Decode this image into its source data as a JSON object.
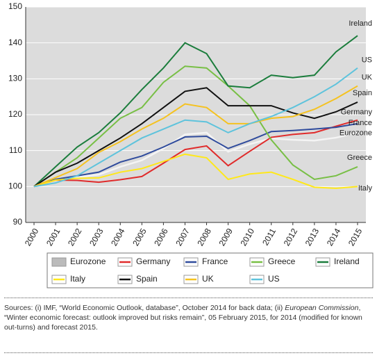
{
  "chart_data": {
    "type": "line",
    "categories": [
      "2000",
      "2001",
      "2002",
      "2003",
      "2004",
      "2005",
      "2006",
      "2007",
      "2008",
      "2009",
      "2010",
      "2011",
      "2012",
      "2013",
      "2014",
      "2015"
    ],
    "ylim": [
      90,
      150
    ],
    "yticks": [
      90,
      100,
      110,
      120,
      130,
      140,
      150
    ],
    "grid": true,
    "series": [
      {
        "name": "Eurozone",
        "color": "#f4f4f4",
        "values": [
          100,
          101.9,
          102.6,
          103.3,
          105.5,
          107.3,
          110.6,
          114.5,
          115,
          109.7,
          111.8,
          113.4,
          113,
          112.8,
          113.6,
          115
        ]
      },
      {
        "name": "Germany",
        "color": "#e02b2b",
        "values": [
          100,
          101.8,
          101.7,
          101.2,
          101.9,
          102.8,
          106.5,
          110.3,
          111.3,
          105.8,
          109.8,
          113.7,
          114.5,
          115,
          116.8,
          118.5
        ]
      },
      {
        "name": "France",
        "color": "#2f4b9c",
        "values": [
          100,
          102,
          103,
          104,
          106.8,
          108.5,
          111,
          113.8,
          114,
          110.6,
          112.8,
          115.3,
          115.6,
          116,
          116.5,
          117.5
        ]
      },
      {
        "name": "Greece",
        "color": "#78bf45",
        "values": [
          100,
          104,
          108,
          113.5,
          119,
          122,
          129,
          133.5,
          133,
          128,
          122.5,
          113,
          106,
          102,
          103,
          105.5
        ]
      },
      {
        "name": "Ireland",
        "color": "#1b7d3c",
        "values": [
          100,
          105.5,
          111,
          115,
          120.5,
          127,
          133,
          140,
          137,
          128,
          127.5,
          131,
          130.3,
          131,
          137.5,
          142
        ]
      },
      {
        "name": "Italy",
        "color": "#ffe81a",
        "values": [
          100,
          101.8,
          102.3,
          102.4,
          104,
          105,
          107,
          109,
          108,
          102,
          103.5,
          104,
          102,
          99.8,
          99.5,
          100
        ]
      },
      {
        "name": "Spain",
        "color": "#111111",
        "values": [
          100,
          104,
          106.5,
          110,
          113.5,
          117.5,
          122,
          126.5,
          127.5,
          122.5,
          122.5,
          122.5,
          120.5,
          119,
          120.8,
          123.5
        ]
      },
      {
        "name": "UK",
        "color": "#f5c220",
        "values": [
          100,
          102.5,
          105,
          109.5,
          112.5,
          116,
          119,
          123,
          122,
          117.5,
          117.5,
          119,
          119.5,
          121.5,
          124.5,
          128
        ]
      },
      {
        "name": "US",
        "color": "#5ec3dc",
        "values": [
          100,
          101,
          103,
          106.5,
          110,
          113.5,
          116,
          118.5,
          118,
          115,
          117.5,
          119.5,
          122,
          125,
          128.5,
          133
        ]
      }
    ]
  },
  "source": [
    "Sources: (i) IMF, “World Economic Outlook, database”, October 2014 for back data; (ii) ",
    "European Commission",
    ", “Winter economic forecast: outlook improved but risks remain”, 05 February 2015, for 2014 (modified for known out-turns) and forecast 2015."
  ]
}
